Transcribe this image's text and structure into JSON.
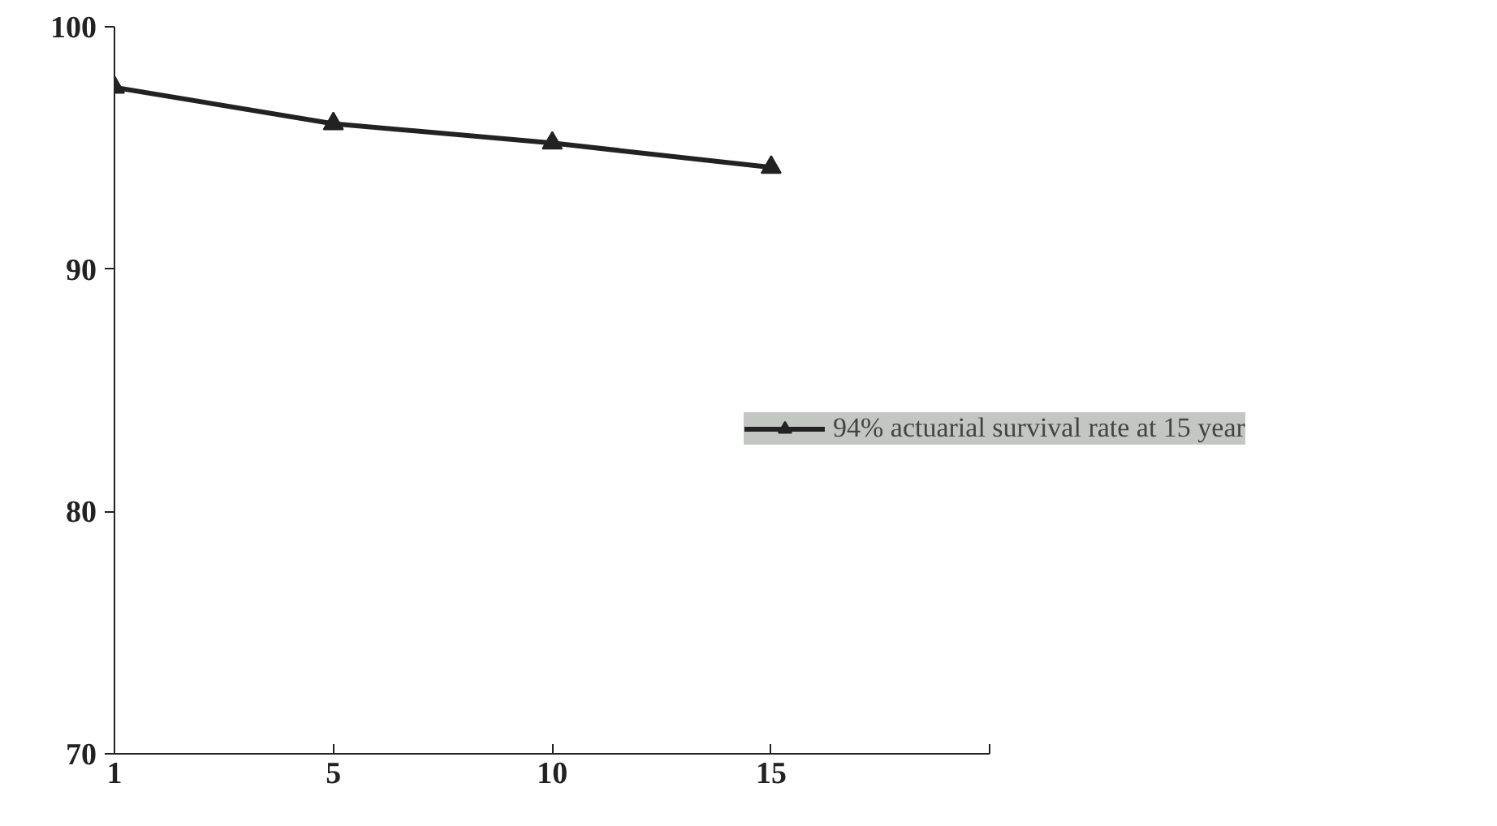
{
  "chart_data": {
    "type": "line",
    "categories": [
      "1",
      "5",
      "10",
      "15",
      null
    ],
    "series": [
      {
        "name": "94% actuarial survival rate at 15 year",
        "color": "#222222",
        "values": [
          97.5,
          96.0,
          95.2,
          94.2,
          null
        ]
      }
    ],
    "ylim": [
      70,
      100
    ],
    "yticks": [
      70,
      80,
      90,
      100
    ],
    "grid": false,
    "legend": "right",
    "marker": "triangle",
    "line_style": "solid"
  }
}
